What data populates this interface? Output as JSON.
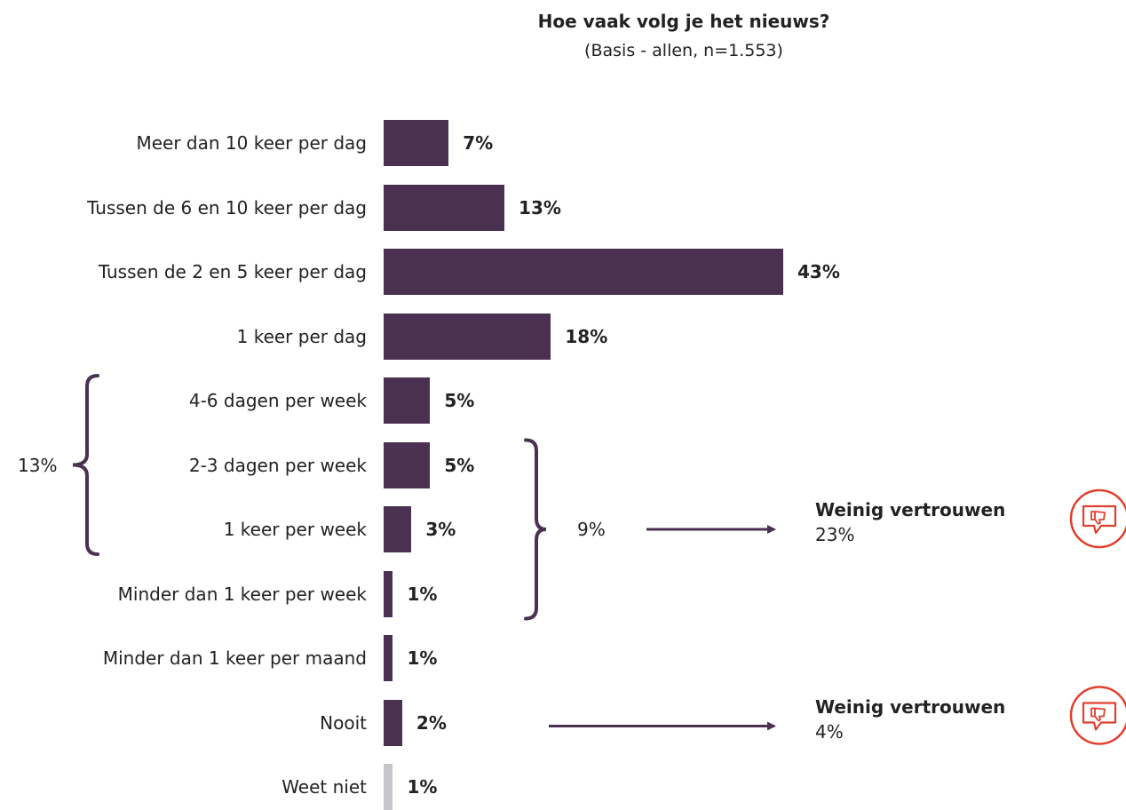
{
  "chart_data": {
    "type": "bar",
    "orientation": "horizontal",
    "title": "Hoe vaak volg je het nieuws?",
    "subtitle": "(Basis - allen, n=1.553)",
    "categories": [
      "Meer dan 10 keer per dag",
      "Tussen de 6 en 10 keer per dag",
      "Tussen de 2 en 5 keer per dag",
      "1 keer per dag",
      "4-6 dagen per week",
      "2-3 dagen per week",
      "1 keer per week",
      "Minder dan 1 keer per week",
      "Minder dan 1 keer per maand",
      "Nooit",
      "Weet niet"
    ],
    "values": [
      7,
      13,
      43,
      18,
      5,
      5,
      3,
      1,
      1,
      2,
      1
    ],
    "value_labels": [
      "7%",
      "13%",
      "43%",
      "18%",
      "5%",
      "5%",
      "3%",
      "1%",
      "1%",
      "2%",
      "1%"
    ],
    "bar_colors": [
      "#4a3152",
      "#4a3152",
      "#4a3152",
      "#4a3152",
      "#4a3152",
      "#4a3152",
      "#4a3152",
      "#4a3152",
      "#4a3152",
      "#4a3152",
      "#c6c6cb"
    ],
    "xlim": [
      0,
      43
    ],
    "grid": false,
    "legend": "none",
    "groups": [
      {
        "label": "13%",
        "from": 4,
        "to": 6,
        "side": "left"
      },
      {
        "label": "9%",
        "from": 5,
        "to": 7,
        "side": "right"
      }
    ],
    "callouts": [
      {
        "from_group": 1,
        "title": "Weinig vertrouwen",
        "value": "23%",
        "icon": "thumbs-down-speech-bubble-icon"
      },
      {
        "from_category": 9,
        "title": "Weinig vertrouwen",
        "value": "4%",
        "icon": "thumbs-down-speech-bubble-icon"
      }
    ]
  },
  "colors": {
    "bar": "#4a3152",
    "bar_unknown": "#c6c6cb",
    "bracket": "#4a3152",
    "arrow": "#4a3152",
    "icon": "#e0402e"
  }
}
